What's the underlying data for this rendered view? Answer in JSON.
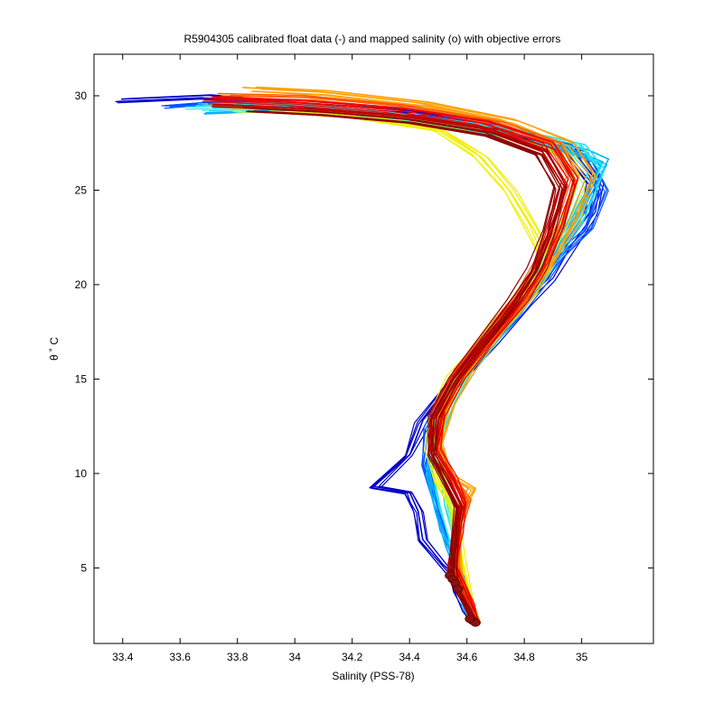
{
  "chart_data": {
    "type": "line",
    "title": "R5904305 calibrated float data (-) and mapped salinity (o) with objective errors",
    "xlabel": "Salinity (PSS-78)",
    "ylabel": "θ ˚ C",
    "xlim": [
      33.3,
      35.25
    ],
    "ylim": [
      1,
      32.2
    ],
    "xticks": [
      33.4,
      33.6,
      33.8,
      34,
      34.2,
      34.4,
      34.6,
      34.8,
      35
    ],
    "xtick_labels": [
      "33.4",
      "33.6",
      "33.8",
      "34",
      "34.2",
      "34.4",
      "34.6",
      "34.8",
      "35"
    ],
    "yticks": [
      5,
      10,
      15,
      20,
      25,
      30
    ],
    "ytick_labels": [
      "5",
      "10",
      "15",
      "20",
      "25",
      "30"
    ],
    "grid": false,
    "legend": "none",
    "colormap": [
      "#00008f",
      "#0000ff",
      "#0080ff",
      "#00ffff",
      "#80ff80",
      "#ffff00",
      "#ff8000",
      "#ff0000",
      "#800000"
    ],
    "series": [
      {
        "color": "#0000c8",
        "x": [
          33.4,
          33.7,
          34.0,
          34.4,
          34.7,
          34.95,
          35.05,
          35.03,
          34.95,
          34.88,
          34.8,
          34.68,
          34.55,
          34.45,
          34.4,
          34.28,
          34.4,
          34.43,
          34.45,
          34.52,
          34.56,
          34.57,
          34.6,
          34.63
        ],
        "y": [
          29.8,
          30.0,
          29.6,
          29.2,
          28.4,
          27.4,
          25.5,
          23.8,
          22.0,
          20.3,
          19.0,
          17.0,
          14.8,
          12.8,
          11.0,
          9.3,
          9.0,
          8.0,
          6.5,
          5.2,
          4.5,
          3.8,
          2.8,
          2.1
        ]
      },
      {
        "color": "#0050ff",
        "x": [
          33.55,
          33.8,
          34.1,
          34.5,
          34.8,
          35.0,
          35.07,
          35.02,
          34.92,
          34.86,
          34.78,
          34.66,
          34.54,
          34.47,
          34.45,
          34.48,
          34.52,
          34.56,
          34.58,
          34.61,
          34.63
        ],
        "y": [
          29.5,
          29.8,
          29.3,
          28.9,
          28.1,
          27.0,
          25.0,
          23.0,
          21.5,
          20.2,
          18.6,
          16.5,
          14.5,
          12.5,
          10.5,
          9.0,
          7.0,
          5.5,
          4.5,
          3.2,
          2.1
        ]
      },
      {
        "color": "#00b4ff",
        "x": [
          33.7,
          34.0,
          34.4,
          34.75,
          35.0,
          35.08,
          35.0,
          34.9,
          34.84,
          34.74,
          34.62,
          34.52,
          34.48,
          34.47,
          34.5,
          34.54,
          34.57,
          34.6,
          34.63
        ],
        "y": [
          29.2,
          29.4,
          28.8,
          28.0,
          27.0,
          26.5,
          24.0,
          21.8,
          20.0,
          18.2,
          16.0,
          14.0,
          12.0,
          10.0,
          8.0,
          6.2,
          4.8,
          3.0,
          2.1
        ]
      },
      {
        "color": "#28e6e6",
        "x": [
          33.65,
          33.95,
          34.35,
          34.75,
          34.98,
          35.05,
          34.98,
          34.89,
          34.82,
          34.72,
          34.61,
          34.53,
          34.49,
          34.5,
          34.52,
          34.55,
          34.57,
          34.6,
          34.63
        ],
        "y": [
          29.4,
          29.5,
          28.9,
          28.1,
          27.3,
          26.0,
          23.5,
          21.5,
          19.8,
          18.0,
          15.8,
          13.8,
          11.8,
          9.8,
          8.2,
          6.5,
          4.7,
          3.0,
          2.1
        ]
      },
      {
        "color": "#a0ff60",
        "x": [
          33.8,
          34.1,
          34.45,
          34.75,
          34.95,
          35.0,
          34.94,
          34.87,
          34.8,
          34.7,
          34.6,
          34.53,
          34.51,
          34.53,
          34.56,
          34.57,
          34.6,
          34.63
        ],
        "y": [
          29.3,
          29.2,
          28.7,
          27.9,
          26.9,
          25.3,
          23.0,
          21.0,
          19.4,
          17.6,
          15.5,
          13.5,
          11.5,
          9.6,
          7.8,
          5.5,
          3.2,
          2.1
        ]
      },
      {
        "color": "#f0f000",
        "x": [
          33.9,
          34.2,
          34.5,
          34.65,
          34.75,
          34.83,
          34.88,
          34.84,
          34.76,
          34.66,
          34.56,
          34.5,
          34.47,
          34.5,
          34.56,
          34.58,
          34.61,
          34.63
        ],
        "y": [
          29.2,
          28.9,
          28.2,
          26.8,
          25.0,
          23.0,
          21.4,
          20.0,
          18.5,
          16.8,
          15.0,
          13.0,
          11.2,
          9.5,
          8.0,
          5.5,
          3.2,
          2.1
        ]
      },
      {
        "color": "#ffa000",
        "x": [
          33.85,
          34.1,
          34.45,
          34.75,
          34.95,
          35.02,
          34.96,
          34.88,
          34.81,
          34.71,
          34.6,
          34.53,
          34.5,
          34.53,
          34.62,
          34.57,
          34.56,
          34.58,
          34.61,
          34.63
        ],
        "y": [
          30.4,
          30.2,
          29.6,
          28.7,
          27.5,
          25.8,
          23.4,
          21.3,
          19.6,
          17.8,
          15.6,
          13.6,
          11.6,
          10.0,
          9.2,
          8.0,
          6.0,
          4.5,
          3.2,
          2.1
        ]
      },
      {
        "color": "#ff5a00",
        "x": [
          33.75,
          34.05,
          34.4,
          34.7,
          34.9,
          34.97,
          34.92,
          34.86,
          34.8,
          34.7,
          34.58,
          34.51,
          34.5,
          34.55,
          34.6,
          34.57,
          34.56,
          34.58,
          34.61,
          34.63
        ],
        "y": [
          30.0,
          29.9,
          29.4,
          28.6,
          27.5,
          25.6,
          23.2,
          21.2,
          19.5,
          17.6,
          15.4,
          13.4,
          11.4,
          9.8,
          8.6,
          7.0,
          5.3,
          4.2,
          3.0,
          2.1
        ]
      },
      {
        "color": "#f00000",
        "x": [
          33.7,
          34.0,
          34.35,
          34.65,
          34.88,
          34.96,
          34.91,
          34.86,
          34.79,
          34.69,
          34.57,
          34.5,
          34.49,
          34.55,
          34.59,
          34.57,
          34.55,
          34.58,
          34.61,
          34.63
        ],
        "y": [
          29.8,
          29.6,
          29.2,
          28.5,
          27.4,
          25.5,
          23.0,
          21.0,
          19.3,
          17.4,
          15.2,
          13.2,
          11.2,
          9.7,
          8.4,
          6.8,
          5.0,
          4.2,
          3.0,
          2.1
        ]
      },
      {
        "color": "#c00000",
        "x": [
          33.72,
          34.02,
          34.38,
          34.68,
          34.88,
          34.95,
          34.9,
          34.85,
          34.78,
          34.68,
          34.57,
          34.5,
          34.48,
          34.54,
          34.58,
          34.56,
          34.55,
          34.57,
          34.61,
          34.63
        ],
        "y": [
          29.6,
          29.4,
          29.0,
          28.3,
          27.2,
          25.3,
          22.9,
          20.9,
          19.2,
          17.3,
          15.1,
          13.1,
          11.1,
          9.6,
          8.3,
          6.6,
          4.9,
          4.0,
          2.8,
          2.1
        ]
      },
      {
        "color": "#8c0000",
        "x": [
          33.85,
          34.1,
          34.4,
          34.68,
          34.86,
          34.93,
          34.89,
          34.84,
          34.77,
          34.67,
          34.56,
          34.49,
          34.48,
          34.53,
          34.57,
          34.56,
          34.55,
          34.57,
          34.61,
          34.63
        ],
        "y": [
          29.3,
          29.1,
          28.7,
          28.0,
          27.0,
          25.2,
          22.8,
          20.8,
          19.1,
          17.2,
          15.0,
          13.0,
          11.0,
          9.5,
          8.2,
          6.5,
          4.8,
          3.9,
          2.7,
          2.1
        ]
      }
    ]
  }
}
